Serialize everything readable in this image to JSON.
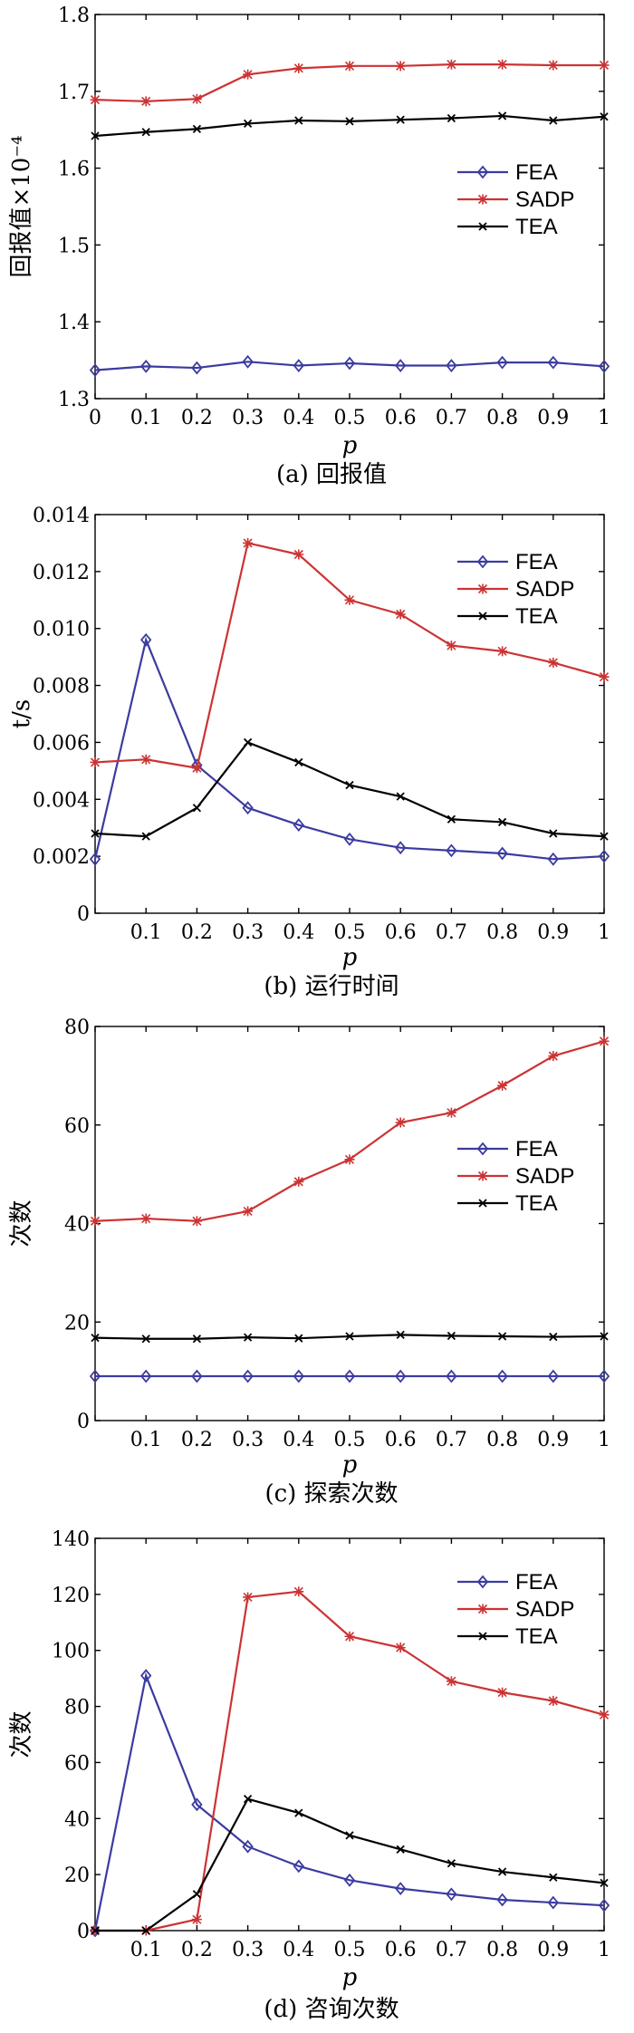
{
  "series_style": {
    "FEA": {
      "color": "#3b3ba0",
      "marker": "diamond"
    },
    "SADP": {
      "color": "#cc3333",
      "marker": "star"
    },
    "TEA": {
      "color": "#000000",
      "marker": "x"
    }
  },
  "chart_data": [
    {
      "type": "line",
      "caption": "(a) 回报值",
      "ylabel": "回报值×10⁻⁴",
      "xlabel": "p",
      "x": [
        0,
        0.1,
        0.2,
        0.3,
        0.4,
        0.5,
        0.6,
        0.7,
        0.8,
        0.9,
        1
      ],
      "xticks": [
        "0",
        "0.1",
        "0.2",
        "0.3",
        "0.4",
        "0.5",
        "0.6",
        "0.7",
        "0.8",
        "0.9",
        "1"
      ],
      "ylim": [
        1.3,
        1.8
      ],
      "yticks": [
        "1.3",
        "1.4",
        "1.5",
        "1.6",
        "1.7",
        "1.8"
      ],
      "ytick_values": [
        1.3,
        1.4,
        1.5,
        1.6,
        1.7,
        1.8
      ],
      "legend_position": "right",
      "series": [
        {
          "name": "FEA",
          "values": [
            1.337,
            1.342,
            1.34,
            1.348,
            1.343,
            1.346,
            1.343,
            1.343,
            1.347,
            1.347,
            1.342
          ]
        },
        {
          "name": "SADP",
          "values": [
            1.689,
            1.687,
            1.69,
            1.722,
            1.73,
            1.733,
            1.733,
            1.735,
            1.735,
            1.734,
            1.734
          ]
        },
        {
          "name": "TEA",
          "values": [
            1.642,
            1.647,
            1.651,
            1.658,
            1.662,
            1.661,
            1.663,
            1.665,
            1.668,
            1.662,
            1.667
          ]
        }
      ]
    },
    {
      "type": "line",
      "caption": "(b) 运行时间",
      "ylabel": "t/s",
      "xlabel": "p",
      "x": [
        0,
        0.1,
        0.2,
        0.3,
        0.4,
        0.5,
        0.6,
        0.7,
        0.8,
        0.9,
        1
      ],
      "xticks": [
        "",
        "0.1",
        "0.2",
        "0.3",
        "0.4",
        "0.5",
        "0.6",
        "0.7",
        "0.8",
        "0.9",
        "1"
      ],
      "ylim": [
        0,
        0.014
      ],
      "yticks": [
        "0",
        "0.002",
        "0.004",
        "0.006",
        "0.008",
        "0.010",
        "0.012",
        "0.014"
      ],
      "ytick_values": [
        0,
        0.002,
        0.004,
        0.006,
        0.008,
        0.01,
        0.012,
        0.014
      ],
      "legend_position": "top-right",
      "series": [
        {
          "name": "FEA",
          "values": [
            0.0019,
            0.0096,
            0.0052,
            0.0037,
            0.0031,
            0.0026,
            0.0023,
            0.0022,
            0.0021,
            0.0019,
            0.002
          ]
        },
        {
          "name": "SADP",
          "values": [
            0.0053,
            0.0054,
            0.0051,
            0.013,
            0.0126,
            0.011,
            0.0105,
            0.0094,
            0.0092,
            0.0088,
            0.0083
          ]
        },
        {
          "name": "TEA",
          "values": [
            0.0028,
            0.0027,
            0.0037,
            0.006,
            0.0053,
            0.0045,
            0.0041,
            0.0033,
            0.0032,
            0.0028,
            0.0027
          ]
        }
      ]
    },
    {
      "type": "line",
      "caption": "(c) 探索次数",
      "ylabel": "次数",
      "xlabel": "p",
      "x": [
        0,
        0.1,
        0.2,
        0.3,
        0.4,
        0.5,
        0.6,
        0.7,
        0.8,
        0.9,
        1
      ],
      "xticks": [
        "",
        "0.1",
        "0.2",
        "0.3",
        "0.4",
        "0.5",
        "0.6",
        "0.7",
        "0.8",
        "0.9",
        "1"
      ],
      "ylim": [
        0,
        80
      ],
      "yticks": [
        "0",
        "20",
        "40",
        "60",
        "80"
      ],
      "ytick_values": [
        0,
        20,
        40,
        60,
        80
      ],
      "legend_position": "right",
      "series": [
        {
          "name": "FEA",
          "values": [
            9,
            9,
            9,
            9,
            9,
            9,
            9,
            9,
            9,
            9,
            9
          ]
        },
        {
          "name": "SADP",
          "values": [
            40.5,
            41,
            40.5,
            42.5,
            48.5,
            53,
            60.5,
            62.5,
            68,
            74,
            77
          ]
        },
        {
          "name": "TEA",
          "values": [
            16.8,
            16.6,
            16.6,
            16.9,
            16.7,
            17.1,
            17.4,
            17.2,
            17.1,
            17.0,
            17.1
          ]
        }
      ]
    },
    {
      "type": "line",
      "caption": "(d) 咨询次数",
      "ylabel": "次数",
      "xlabel": "p",
      "x": [
        0,
        0.1,
        0.2,
        0.3,
        0.4,
        0.5,
        0.6,
        0.7,
        0.8,
        0.9,
        1
      ],
      "xticks": [
        "",
        "0.1",
        "0.2",
        "0.3",
        "0.4",
        "0.5",
        "0.6",
        "0.7",
        "0.8",
        "0.9",
        "1"
      ],
      "ylim": [
        0,
        140
      ],
      "yticks": [
        "0",
        "20",
        "40",
        "60",
        "80",
        "100",
        "120",
        "140"
      ],
      "ytick_values": [
        0,
        20,
        40,
        60,
        80,
        100,
        120,
        140
      ],
      "legend_position": "top-right",
      "series": [
        {
          "name": "FEA",
          "values": [
            0,
            91,
            45,
            30,
            23,
            18,
            15,
            13,
            11,
            10,
            9
          ]
        },
        {
          "name": "SADP",
          "values": [
            0,
            0,
            4,
            119,
            121,
            105,
            101,
            89,
            85,
            82,
            77
          ]
        },
        {
          "name": "TEA",
          "values": [
            0,
            0,
            13,
            47,
            42,
            34,
            29,
            24,
            21,
            19,
            17
          ]
        }
      ]
    }
  ]
}
